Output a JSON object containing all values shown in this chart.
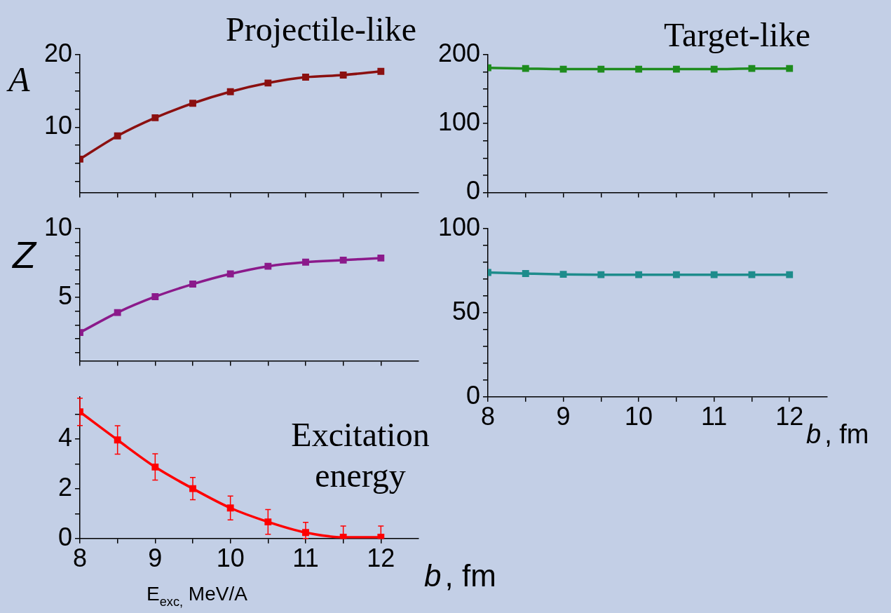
{
  "chart_data": [
    {
      "type": "line",
      "title": "Projectile-like",
      "ylabel": "A",
      "x": [
        8,
        8.5,
        9,
        9.5,
        10,
        10.5,
        11,
        11.5,
        12
      ],
      "series": [
        {
          "color": "#8b1010",
          "values": [
            5.6,
            8.8,
            11.3,
            13.3,
            14.9,
            16.1,
            16.9,
            17.2,
            17.7
          ]
        }
      ],
      "xlim": [
        8,
        12.5
      ],
      "xticks": [
        8,
        {
          "value": 8.5,
          "label": null
        },
        9,
        {
          "value": 9.5,
          "label": null
        },
        10,
        {
          "value": 10.5,
          "label": null
        },
        11,
        {
          "value": 11.5,
          "label": null
        },
        12
      ],
      "ylim": [
        1,
        20
      ],
      "yticks": [
        {
          "value": 2.5,
          "label": null
        },
        {
          "value": 5,
          "label": null
        },
        {
          "value": 7.5,
          "label": null
        },
        10,
        {
          "value": 12.5,
          "label": null
        },
        {
          "value": 15,
          "label": null
        },
        {
          "value": 17.5,
          "label": null
        },
        20
      ],
      "tick_labels": "y",
      "grid": false,
      "marker": "square",
      "line_style": "solid"
    },
    {
      "type": "line",
      "title": "Target-like",
      "x": [
        8,
        8.5,
        9,
        9.5,
        10,
        10.5,
        11,
        11.5,
        12
      ],
      "series": [
        {
          "color": "#1e8c1e",
          "values": [
            181,
            180,
            179,
            179,
            179,
            179,
            179,
            180,
            180
          ]
        }
      ],
      "xlim": [
        8,
        12.5
      ],
      "xticks": [
        8,
        {
          "value": 8.5,
          "label": null
        },
        9,
        {
          "value": 9.5,
          "label": null
        },
        10,
        {
          "value": 10.5,
          "label": null
        },
        11,
        {
          "value": 11.5,
          "label": null
        },
        12
      ],
      "ylim": [
        0,
        200
      ],
      "yticks": [
        0,
        {
          "value": 25,
          "label": null
        },
        {
          "value": 50,
          "label": null
        },
        {
          "value": 75,
          "label": null
        },
        100,
        {
          "value": 125,
          "label": null
        },
        {
          "value": 150,
          "label": null
        },
        {
          "value": 175,
          "label": null
        },
        200
      ],
      "tick_labels": "y",
      "grid": false,
      "marker": "square",
      "line_style": "solid"
    },
    {
      "type": "line",
      "ylabel": "Z",
      "x": [
        8,
        8.5,
        9,
        9.5,
        10,
        10.5,
        11,
        11.5,
        12
      ],
      "series": [
        {
          "color": "#8b1a8b",
          "values": [
            2.45,
            3.9,
            5.05,
            5.96,
            6.7,
            7.25,
            7.55,
            7.7,
            7.85
          ]
        }
      ],
      "xlim": [
        8,
        12.5
      ],
      "xticks": [
        8,
        {
          "value": 8.5,
          "label": null
        },
        9,
        {
          "value": 9.5,
          "label": null
        },
        10,
        {
          "value": 10.5,
          "label": null
        },
        11,
        {
          "value": 11.5,
          "label": null
        },
        12
      ],
      "ylim": [
        0.4,
        10
      ],
      "yticks": [
        {
          "value": 1,
          "label": null
        },
        {
          "value": 2,
          "label": null
        },
        {
          "value": 3,
          "label": null
        },
        {
          "value": 4,
          "label": null
        },
        5,
        {
          "value": 6,
          "label": null
        },
        {
          "value": 7,
          "label": null
        },
        {
          "value": 8,
          "label": null
        },
        {
          "value": 9,
          "label": null
        },
        10
      ],
      "tick_labels": "y",
      "grid": false,
      "marker": "square",
      "line_style": "solid"
    },
    {
      "type": "line",
      "xlabel": "b, fm",
      "x": [
        8,
        8.5,
        9,
        9.5,
        10,
        10.5,
        11,
        11.5,
        12
      ],
      "series": [
        {
          "color": "#1e8c8c",
          "values": [
            73.8,
            73.2,
            72.7,
            72.5,
            72.5,
            72.5,
            72.5,
            72.5,
            72.5
          ]
        }
      ],
      "xlim": [
        8,
        12.5
      ],
      "xticks": [
        8,
        {
          "value": 8.5,
          "label": null
        },
        9,
        {
          "value": 9.5,
          "label": null
        },
        10,
        {
          "value": 10.5,
          "label": null
        },
        11,
        {
          "value": 11.5,
          "label": null
        },
        12
      ],
      "ylim": [
        0,
        100
      ],
      "yticks": [
        0,
        {
          "value": 10,
          "label": null
        },
        {
          "value": 20,
          "label": null
        },
        {
          "value": 30,
          "label": null
        },
        {
          "value": 40,
          "label": null
        },
        50,
        {
          "value": 60,
          "label": null
        },
        {
          "value": 70,
          "label": null
        },
        {
          "value": 80,
          "label": null
        },
        {
          "value": 90,
          "label": null
        },
        100
      ],
      "grid": false,
      "marker": "square",
      "line_style": "solid"
    },
    {
      "type": "line",
      "title": "Excitation energy",
      "xlabel": "b, fm",
      "annotations": [
        "E$_{exc,}$ MeV/A"
      ],
      "x": [
        8,
        8.5,
        9,
        9.5,
        10,
        10.5,
        11,
        11.5,
        12
      ],
      "series": [
        {
          "color": "#ff0000",
          "values": [
            5.1,
            3.97,
            2.88,
            2.01,
            1.23,
            0.67,
            0.24,
            0.05,
            0.05
          ],
          "errors": [
            0.55,
            0.57,
            0.53,
            0.45,
            0.48,
            0.5,
            [
              0,
              0.65
            ],
            [
              0,
              0.5
            ],
            [
              0,
              0.5
            ]
          ]
        }
      ],
      "xlim": [
        8,
        12.5
      ],
      "xticks": [
        8,
        {
          "value": 8.5,
          "label": null
        },
        9,
        {
          "value": 9.5,
          "label": null
        },
        10,
        {
          "value": 10.5,
          "label": null
        },
        11,
        {
          "value": 11.5,
          "label": null
        },
        12
      ],
      "ylim": [
        0,
        5.7
      ],
      "yticks": [
        0,
        {
          "value": 1,
          "label": null
        },
        2,
        {
          "value": 3,
          "label": null
        },
        4,
        {
          "value": 5,
          "label": null
        }
      ],
      "grid": false,
      "marker": "square",
      "line_style": "solid"
    }
  ]
}
